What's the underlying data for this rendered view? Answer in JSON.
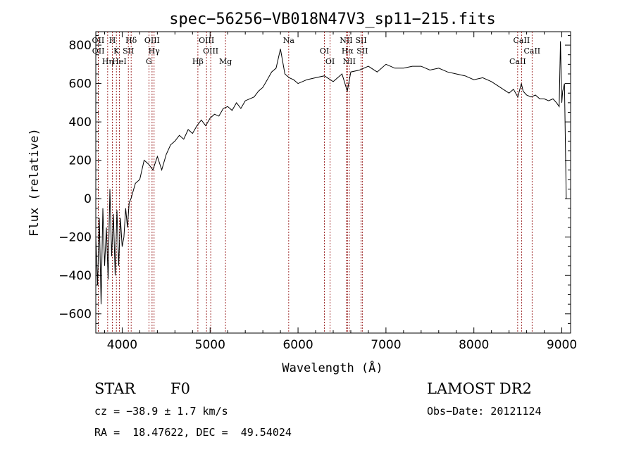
{
  "chart_data": {
    "type": "line",
    "title": "spec−56256−VB018N47V3_sp11−215.fits",
    "xlabel": "Wavelength (Å)",
    "ylabel": "Flux (relative)",
    "xlim": [
      3700,
      9100
    ],
    "ylim": [
      -700,
      870
    ],
    "x_ticks": [
      4000,
      5000,
      6000,
      7000,
      8000,
      9000
    ],
    "x_tick_labels": [
      "4000",
      "5000",
      "6000",
      "7000",
      "8000",
      "9000"
    ],
    "y_ticks": [
      -600,
      -400,
      -200,
      0,
      200,
      400,
      600,
      800
    ],
    "y_tick_labels": [
      "−600",
      "−400",
      "−200",
      "0",
      "200",
      "400",
      "600",
      "800"
    ],
    "grid": false,
    "series": [
      {
        "line_color": "#000000",
        "x": [
          3700,
          3720,
          3740,
          3760,
          3780,
          3800,
          3820,
          3840,
          3860,
          3880,
          3900,
          3920,
          3940,
          3960,
          3980,
          4000,
          4020,
          4040,
          4060,
          4080,
          4100,
          4150,
          4200,
          4250,
          4300,
          4350,
          4400,
          4450,
          4500,
          4550,
          4600,
          4650,
          4700,
          4750,
          4800,
          4850,
          4900,
          4950,
          5000,
          5050,
          5100,
          5150,
          5200,
          5250,
          5300,
          5350,
          5400,
          5450,
          5500,
          5550,
          5600,
          5650,
          5700,
          5750,
          5800,
          5850,
          5900,
          5950,
          6000,
          6100,
          6200,
          6300,
          6400,
          6500,
          6560,
          6600,
          6700,
          6800,
          6900,
          7000,
          7100,
          7200,
          7300,
          7400,
          7500,
          7600,
          7700,
          7800,
          7900,
          8000,
          8100,
          8200,
          8300,
          8400,
          8450,
          8500,
          8540,
          8560,
          8600,
          8650,
          8700,
          8750,
          8800,
          8850,
          8900,
          8940,
          8970,
          8985,
          9000,
          9010,
          9030,
          9050
        ],
        "values": [
          -200,
          -450,
          -100,
          -550,
          -50,
          -350,
          -150,
          -420,
          50,
          -300,
          -80,
          -400,
          -60,
          -350,
          -100,
          -250,
          -200,
          -50,
          -150,
          -20,
          0,
          80,
          100,
          200,
          180,
          150,
          220,
          150,
          230,
          280,
          300,
          330,
          310,
          360,
          340,
          380,
          410,
          380,
          420,
          440,
          430,
          470,
          480,
          460,
          500,
          470,
          510,
          520,
          530,
          560,
          580,
          620,
          660,
          680,
          780,
          650,
          630,
          620,
          600,
          620,
          630,
          640,
          610,
          650,
          560,
          660,
          670,
          690,
          660,
          700,
          680,
          680,
          690,
          690,
          670,
          680,
          660,
          650,
          640,
          620,
          630,
          610,
          580,
          550,
          570,
          530,
          600,
          560,
          540,
          530,
          540,
          520,
          520,
          510,
          520,
          500,
          480,
          820,
          500,
          560,
          600,
          0
        ]
      }
    ],
    "lines": [
      {
        "label": "OII",
        "x": 3727
      },
      {
        "label": "OII",
        "x": 3729
      },
      {
        "label": "Hη",
        "x": 3835
      },
      {
        "label": "H",
        "x": 3889
      },
      {
        "label": "K",
        "x": 3934
      },
      {
        "label": "HeI",
        "x": 3968
      },
      {
        "label": "Hδ",
        "x": 4102
      },
      {
        "label": "SII",
        "x": 4070
      },
      {
        "label": "G",
        "x": 4304
      },
      {
        "label": "OIII",
        "x": 4340
      },
      {
        "label": "Hγ",
        "x": 4363
      },
      {
        "label": "Hβ",
        "x": 4861
      },
      {
        "label": "OIII",
        "x": 4959
      },
      {
        "label": "OIII",
        "x": 5007
      },
      {
        "label": "Mg",
        "x": 5175
      },
      {
        "label": "Na",
        "x": 5894
      },
      {
        "label": "OI",
        "x": 6300
      },
      {
        "label": "OI",
        "x": 6364
      },
      {
        "label": "NII",
        "x": 6548
      },
      {
        "label": "Hα",
        "x": 6563
      },
      {
        "label": "NII",
        "x": 6583
      },
      {
        "label": "SII",
        "x": 6717
      },
      {
        "label": "SII",
        "x": 6731
      },
      {
        "label": "CaII",
        "x": 8498
      },
      {
        "label": "CaII",
        "x": 8542
      },
      {
        "label": "CaII",
        "x": 8662
      }
    ],
    "colors": {
      "spectrum": "#000000",
      "line_markers": "#8b0000"
    }
  },
  "info": {
    "object_class": "STAR",
    "subclass": "F0",
    "survey": "LAMOST DR2",
    "redshift": "cz = −38.9 ± 1.7 km/s",
    "obs_date": "Obs−Date: 20121124",
    "coords": "RA =  18.47622, DEC =  49.54024"
  }
}
